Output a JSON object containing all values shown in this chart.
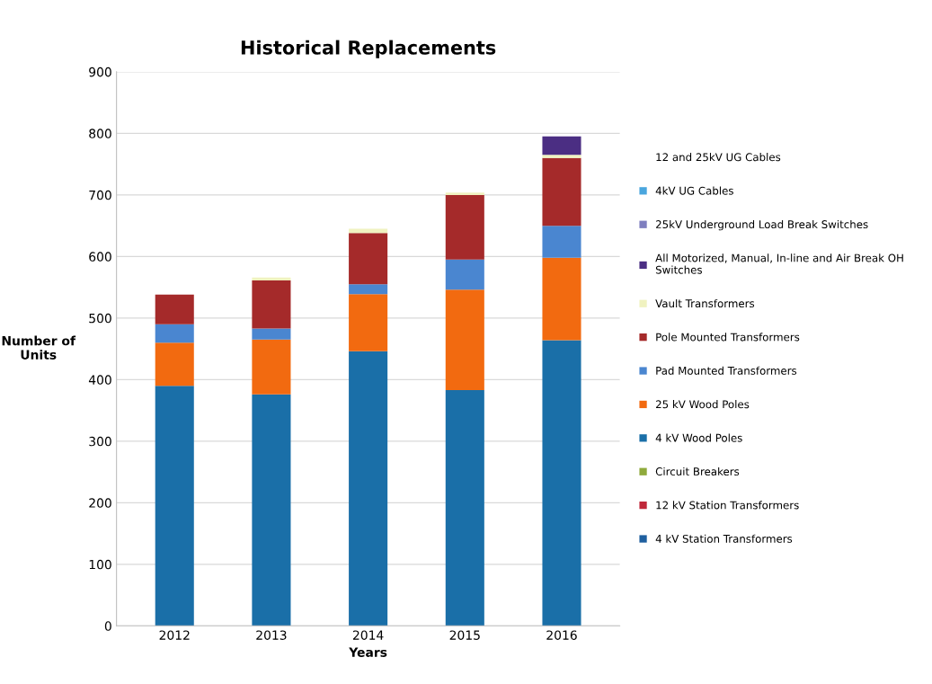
{
  "chart_data": {
    "type": "bar",
    "title": "Historical Replacements",
    "xlabel": "Years",
    "ylabel": "Number of\nUnits",
    "categories": [
      "2012",
      "2013",
      "2014",
      "2015",
      "2016"
    ],
    "stacked": true,
    "ylim": [
      0,
      900
    ],
    "yticks": [
      0,
      100,
      200,
      300,
      400,
      500,
      600,
      700,
      800,
      900
    ],
    "grid": "y",
    "legend": "right",
    "series": [
      {
        "name": "4 kV Station Transformers",
        "color": "#1f5f9f",
        "values": [
          0,
          0,
          0,
          0,
          0
        ]
      },
      {
        "name": "12 kV Station Transformers",
        "color": "#c0283a",
        "values": [
          0,
          0,
          0,
          0,
          0
        ]
      },
      {
        "name": "Circuit Breakers",
        "color": "#8faa3c",
        "values": [
          0,
          0,
          0,
          0,
          0
        ]
      },
      {
        "name": "4 kV Wood Poles",
        "color": "#1a6fa8",
        "values": [
          390,
          376,
          446,
          383,
          464
        ]
      },
      {
        "name": "25 kV Wood Poles",
        "color": "#f26a10",
        "values": [
          70,
          89,
          93,
          163,
          134
        ]
      },
      {
        "name": "Pad Mounted Transformers",
        "color": "#4a86d0",
        "values": [
          30,
          18,
          16,
          49,
          52
        ]
      },
      {
        "name": "Pole Mounted Transformers",
        "color": "#a52a2a",
        "values": [
          48,
          78,
          83,
          105,
          110
        ]
      },
      {
        "name": "Vault Transformers",
        "color": "#f0f2c0",
        "values": [
          0,
          5,
          7,
          4,
          5
        ]
      },
      {
        "name": "All Motorized, Manual, In-line and Air Break OH\nSwitches",
        "color": "#4b2e83",
        "values": [
          0,
          0,
          0,
          0,
          30
        ]
      },
      {
        "name": "25kV Underground Load Break Switches",
        "color": "#7f7fbf",
        "values": [
          0,
          0,
          0,
          0,
          0
        ]
      },
      {
        "name": "4kV UG Cables",
        "color": "#4aa6de",
        "values": [
          0,
          0,
          0,
          0,
          0
        ]
      },
      {
        "name": "12 and 25kV UG Cables",
        "values": [
          0,
          0,
          0,
          0,
          0
        ]
      }
    ]
  }
}
